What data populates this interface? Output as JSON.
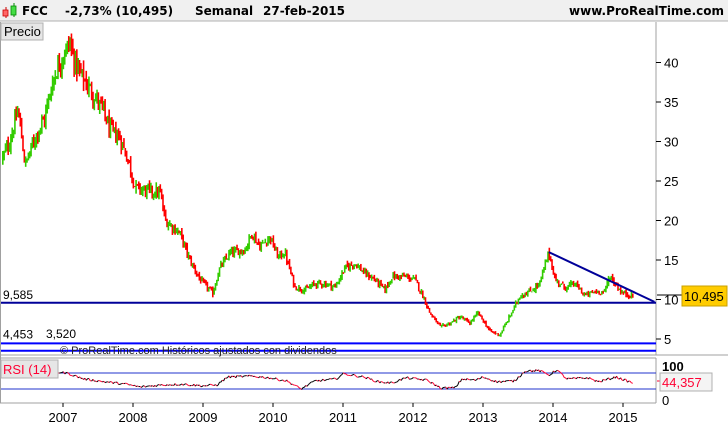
{
  "header": {
    "symbol": "FCC",
    "change": "-2,73% (10,495)",
    "period": "Semanal",
    "date": "27-feb-2015",
    "site": "www.ProRealTime.com"
  },
  "price_panel": {
    "label": "Precio",
    "last_price_label": "10,495",
    "watermark": "© ProRealTime.com  Históricos ajustados con dividendos",
    "levels": [
      {
        "label": "9,585",
        "value": 9.585,
        "color": "#000099"
      },
      {
        "label": "4,453",
        "value": 4.453,
        "color": "#0000ff"
      },
      {
        "label": "3,520",
        "value": 3.52,
        "color": "#0000ff"
      }
    ],
    "trendline": {
      "from": [
        2013.94,
        16.0
      ],
      "to": [
        2015.45,
        9.7
      ],
      "color": "#000099"
    },
    "colors": {
      "up": "#33cc00",
      "down": "#ff0000",
      "last_bg": "#ffcc00"
    }
  },
  "rsi_panel": {
    "label": "RSI (14)",
    "value_label": "44,357",
    "tick_labels": [
      "100",
      "0"
    ],
    "bands": [
      70,
      30
    ]
  },
  "chart_data": {
    "type": "candlestick",
    "title": "FCC - Semanal",
    "ylabel": "Precio",
    "ylim": [
      0,
      45
    ],
    "xlim": [
      2006.1,
      2015.6
    ],
    "y_ticks": [
      5,
      10,
      15,
      20,
      25,
      30,
      35,
      40
    ],
    "x_ticks": [
      "2007",
      "2008",
      "2009",
      "2010",
      "2011",
      "2012",
      "2013",
      "2014",
      "2015"
    ],
    "close_path": [
      [
        2006.14,
        28
      ],
      [
        2006.24,
        30
      ],
      [
        2006.36,
        34
      ],
      [
        2006.46,
        27
      ],
      [
        2006.6,
        30.5
      ],
      [
        2006.74,
        33
      ],
      [
        2006.81,
        36
      ],
      [
        2006.89,
        38.7
      ],
      [
        2006.99,
        40.7
      ],
      [
        2007.1,
        42.5
      ],
      [
        2007.17,
        40
      ],
      [
        2007.24,
        38.7
      ],
      [
        2007.36,
        37
      ],
      [
        2007.46,
        35.6
      ],
      [
        2007.57,
        34
      ],
      [
        2007.67,
        31.5
      ],
      [
        2007.81,
        30.5
      ],
      [
        2007.93,
        27.7
      ],
      [
        2008.03,
        24.2
      ],
      [
        2008.17,
        23.8
      ],
      [
        2008.39,
        23.5
      ],
      [
        2008.46,
        20
      ],
      [
        2008.67,
        18.4
      ],
      [
        2008.81,
        15
      ],
      [
        2008.96,
        12.5
      ],
      [
        2009.14,
        10.8
      ],
      [
        2009.24,
        14
      ],
      [
        2009.39,
        15.9
      ],
      [
        2009.6,
        16.3
      ],
      [
        2009.7,
        18.4
      ],
      [
        2009.81,
        16.7
      ],
      [
        2009.96,
        17.9
      ],
      [
        2010.07,
        15.4
      ],
      [
        2010.17,
        15.9
      ],
      [
        2010.31,
        11.6
      ],
      [
        2010.46,
        11.2
      ],
      [
        2010.6,
        12
      ],
      [
        2010.74,
        12
      ],
      [
        2010.89,
        11.6
      ],
      [
        2011.03,
        14
      ],
      [
        2011.17,
        14.6
      ],
      [
        2011.31,
        13.3
      ],
      [
        2011.46,
        12.5
      ],
      [
        2011.6,
        11.2
      ],
      [
        2011.7,
        12.9
      ],
      [
        2011.89,
        12.9
      ],
      [
        2012.03,
        12.5
      ],
      [
        2012.17,
        9.9
      ],
      [
        2012.24,
        8.3
      ],
      [
        2012.39,
        6.5
      ],
      [
        2012.53,
        7
      ],
      [
        2012.67,
        7.8
      ],
      [
        2012.81,
        7
      ],
      [
        2012.93,
        8.3
      ],
      [
        2013.1,
        6
      ],
      [
        2013.24,
        5.5
      ],
      [
        2013.39,
        8
      ],
      [
        2013.53,
        10.5
      ],
      [
        2013.67,
        11
      ],
      [
        2013.81,
        12
      ],
      [
        2013.94,
        16
      ],
      [
        2014.03,
        12.5
      ],
      [
        2014.17,
        11.5
      ],
      [
        2014.31,
        12
      ],
      [
        2014.46,
        10.5
      ],
      [
        2014.6,
        11
      ],
      [
        2014.74,
        11
      ],
      [
        2014.81,
        13
      ],
      [
        2014.89,
        12
      ],
      [
        2014.99,
        10.8
      ],
      [
        2015.15,
        10.495
      ]
    ],
    "rsi": {
      "name": "RSI (14)",
      "ylim": [
        0,
        100
      ],
      "bands": [
        30,
        70
      ],
      "path": [
        [
          2006.14,
          62
        ],
        [
          2006.5,
          68
        ],
        [
          2006.9,
          72
        ],
        [
          2007.05,
          70
        ],
        [
          2007.3,
          55
        ],
        [
          2007.6,
          48
        ],
        [
          2007.9,
          42
        ],
        [
          2008.1,
          35
        ],
        [
          2008.4,
          40
        ],
        [
          2008.7,
          42
        ],
        [
          2009.0,
          38
        ],
        [
          2009.2,
          40
        ],
        [
          2009.35,
          60
        ],
        [
          2009.7,
          62
        ],
        [
          2009.95,
          58
        ],
        [
          2010.2,
          50
        ],
        [
          2010.4,
          30
        ],
        [
          2010.6,
          50
        ],
        [
          2010.9,
          55
        ],
        [
          2011.0,
          68
        ],
        [
          2011.3,
          60
        ],
        [
          2011.5,
          48
        ],
        [
          2011.7,
          45
        ],
        [
          2011.9,
          58
        ],
        [
          2012.2,
          52
        ],
        [
          2012.4,
          32
        ],
        [
          2012.6,
          33
        ],
        [
          2012.7,
          55
        ],
        [
          2012.9,
          52
        ],
        [
          2013.0,
          60
        ],
        [
          2013.2,
          48
        ],
        [
          2013.45,
          50
        ],
        [
          2013.6,
          75
        ],
        [
          2013.8,
          76
        ],
        [
          2013.95,
          65
        ],
        [
          2014.05,
          78
        ],
        [
          2014.2,
          55
        ],
        [
          2014.5,
          58
        ],
        [
          2014.65,
          48
        ],
        [
          2014.9,
          60
        ],
        [
          2015.15,
          44.357
        ]
      ]
    }
  }
}
